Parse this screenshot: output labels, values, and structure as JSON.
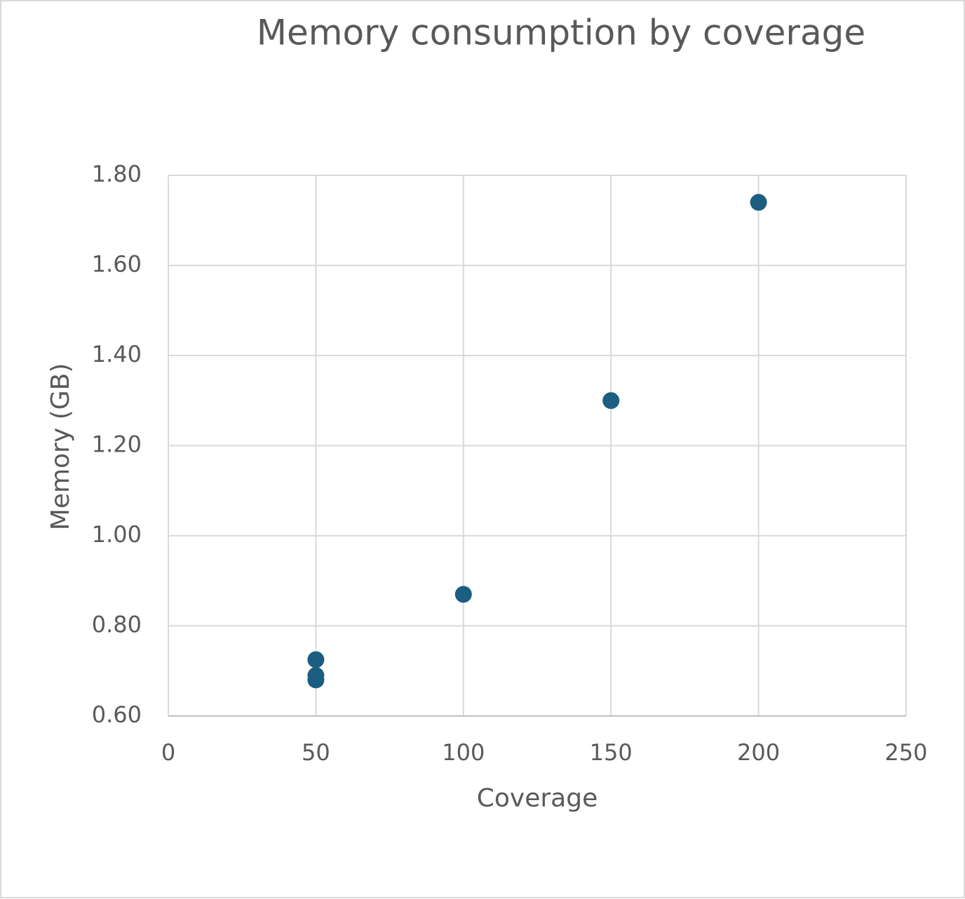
{
  "chart_data": {
    "type": "scatter",
    "title": "Memory consumption by coverage",
    "x_label": "Coverage",
    "y_label": "Memory (GB)",
    "series": [
      {
        "name": "Memory",
        "color": "#1b5e80",
        "x": [
          50,
          50,
          50,
          100,
          150,
          200
        ],
        "values": [
          0.725,
          0.69,
          0.68,
          0.87,
          1.3,
          1.74
        ]
      }
    ],
    "xlim": [
      0,
      250
    ],
    "xticks": [
      0,
      50,
      100,
      150,
      200,
      250
    ],
    "ylim": [
      0.6,
      1.8
    ],
    "yticks": [
      {
        "value": 0.6,
        "label": "0.60"
      },
      {
        "value": 0.8,
        "label": "0.80"
      },
      {
        "value": 1.0,
        "label": "1.00"
      },
      {
        "value": 1.2,
        "label": "1.20"
      },
      {
        "value": 1.4,
        "label": "1.40"
      },
      {
        "value": 1.6,
        "label": "1.60"
      },
      {
        "value": 1.8,
        "label": "1.80"
      }
    ],
    "grid": true
  }
}
